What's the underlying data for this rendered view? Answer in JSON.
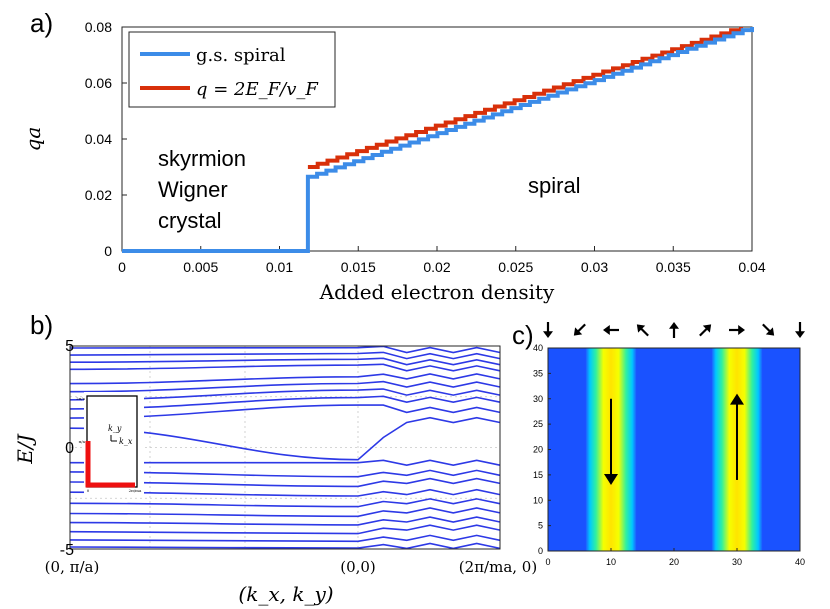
{
  "colors": {
    "spiral": "#3c8ce8",
    "fermi": "#d8300a",
    "bands": "#2d39e6",
    "inset_path": "#ee1010"
  },
  "panel_labels": [
    "a)",
    "b)",
    "c)"
  ],
  "chart_data": [
    {
      "type": "line",
      "panel": "a",
      "xlabel": "Added electron density",
      "ylabel": "qa",
      "xlim": [
        0,
        0.04
      ],
      "ylim": [
        0,
        0.08
      ],
      "xticks": [
        "0",
        "0.005",
        "0.01",
        "0.015",
        "0.02",
        "0.025",
        "0.03",
        "0.035",
        "0.04"
      ],
      "yticks": [
        "0",
        "0.02",
        "0.04",
        "0.06",
        "0.08"
      ],
      "legend": [
        "g.s. spiral",
        "q = 2E_F/v_F"
      ],
      "legend_position": "top-left",
      "annotations": {
        "left_lines": [
          "skyrmion",
          "Wigner",
          "crystal"
        ],
        "right": "spiral"
      },
      "series": [
        {
          "name": "g.s. spiral",
          "transition_density": 0.0118,
          "x": [
            0,
            0.0118,
            0.0118,
            0.04
          ],
          "y": [
            0,
            0,
            0.0265,
            0.08
          ]
        },
        {
          "name": "q = 2E_F/v_F",
          "x": [
            0.0118,
            0.0393
          ],
          "y": [
            0.03,
            0.08
          ]
        }
      ]
    },
    {
      "type": "line",
      "panel": "b",
      "xlabel": "(k_x, k_y)",
      "ylabel": "E/J",
      "ylim": [
        -5,
        5
      ],
      "yticks": [
        "5",
        "0",
        "-5"
      ],
      "xtick_labels": [
        "(0, π/a)",
        "(0,0)",
        "(2π/ma, 0)"
      ],
      "bands_above": [
        4.9,
        4.55,
        4.2,
        3.85,
        3.15,
        2.75,
        2.35,
        1.9,
        1.45,
        0.95
      ],
      "bands_below": [
        -0.75,
        -1.2,
        -1.7,
        -2.2,
        -2.75,
        -3.25,
        -3.7,
        -4.15,
        -4.55,
        -4.9
      ],
      "bands_right_upper": [
        4.8,
        4.5,
        4.2,
        3.9,
        3.5,
        3.1,
        2.7,
        2.35,
        1.85,
        1.35
      ],
      "bands_right_lower": [
        -0.75,
        -1.25,
        -1.65,
        -2.2,
        -2.65,
        -3.1,
        -3.55,
        -3.95,
        -4.45,
        -4.85
      ],
      "inset": {
        "kx_label": "k_x",
        "ky_label": "k_y",
        "ytick_top": "2π/a",
        "ytick_mid": "π/a",
        "xtick": "2π/ma",
        "xorigin": "0"
      }
    },
    {
      "type": "heatmap",
      "panel": "c",
      "xlim": [
        0,
        40
      ],
      "ylim": [
        0,
        40
      ],
      "xticks": [
        "0",
        "10",
        "20",
        "30",
        "40"
      ],
      "yticks": [
        "0",
        "5",
        "10",
        "15",
        "20",
        "25",
        "30",
        "35",
        "40"
      ],
      "stripe_centers": [
        10,
        30
      ],
      "stripe_arrows": [
        "down",
        "up"
      ],
      "spin_angles_deg": [
        270,
        225,
        180,
        135,
        90,
        45,
        0,
        315,
        270
      ],
      "spin_x_positions": [
        0,
        5,
        10,
        15,
        20,
        25,
        30,
        35,
        40
      ]
    }
  ]
}
